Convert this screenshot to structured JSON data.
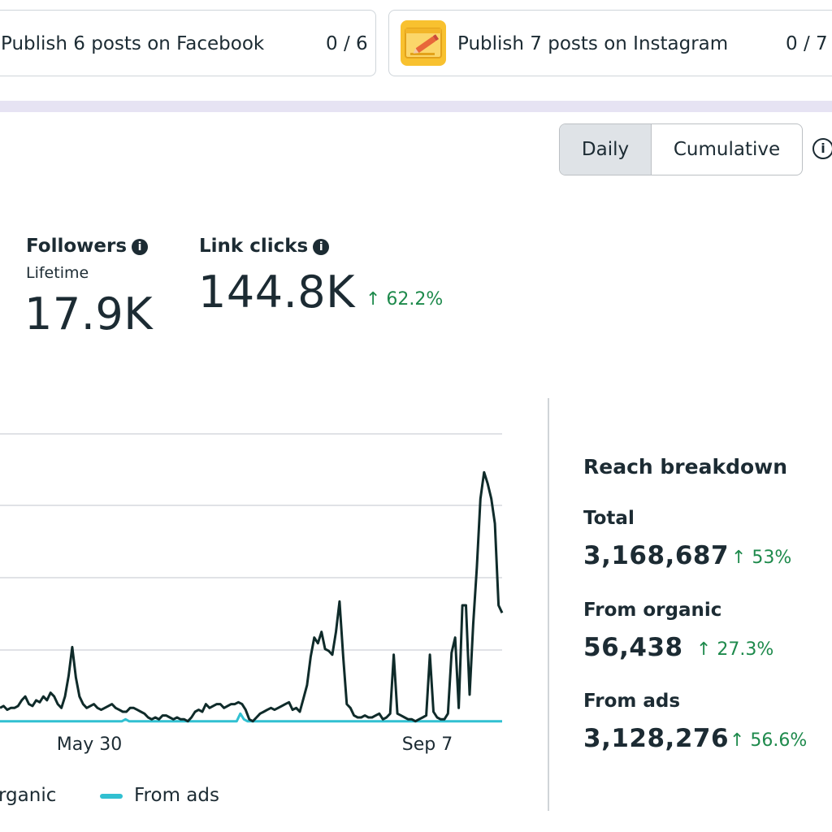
{
  "goals": [
    {
      "label": "Publish 6 posts on Facebook",
      "count": "0 / 6"
    },
    {
      "label": "Publish 7 posts on Instagram",
      "count": "0 / 7"
    }
  ],
  "toggle": {
    "daily": "Daily",
    "cumulative": "Cumulative",
    "selected": "Daily"
  },
  "metrics": {
    "followers": {
      "title": "Followers",
      "subtitle": "Lifetime",
      "value": "17.9K"
    },
    "link_clicks": {
      "title": "Link clicks",
      "value": "144.8K",
      "delta": "↑ 62.2%"
    }
  },
  "chart_data": {
    "type": "line",
    "x_tick_labels": [
      "May 30",
      "Sep 7"
    ],
    "series": [
      {
        "name": "organic",
        "color": "#0f2b2a",
        "values": [
          8,
          9,
          7,
          8,
          8,
          9,
          12,
          14,
          10,
          9,
          12,
          11,
          14,
          12,
          16,
          14,
          10,
          8,
          14,
          25,
          40,
          24,
          14,
          10,
          8,
          9,
          10,
          8,
          7,
          8,
          9,
          10,
          8,
          7,
          6,
          6,
          8,
          8,
          7,
          6,
          5,
          3,
          2,
          3,
          2,
          4,
          4,
          3,
          2,
          3,
          2,
          2,
          1,
          3,
          6,
          7,
          6,
          10,
          8,
          9,
          10,
          10,
          8,
          9,
          10,
          10,
          11,
          10,
          7,
          2,
          1,
          3,
          5,
          6,
          7,
          8,
          7,
          8,
          9,
          10,
          11,
          7,
          8,
          6,
          13,
          20,
          35,
          45,
          42,
          48,
          39,
          38,
          36,
          48,
          64,
          35,
          10,
          8,
          4,
          3,
          3,
          4,
          3,
          3,
          4,
          5,
          2,
          3,
          5,
          36,
          5,
          4,
          3,
          2,
          2,
          1,
          2,
          3,
          4,
          36,
          6,
          3,
          2,
          2,
          5,
          37,
          45,
          8,
          62,
          62,
          15,
          52,
          82,
          118,
          132,
          126,
          118,
          105,
          62,
          58
        ]
      },
      {
        "name": "From ads",
        "color": "#31c0d1",
        "values": [
          1,
          1,
          1,
          1,
          1,
          1,
          1,
          1,
          1,
          1,
          1,
          1,
          1,
          1,
          1,
          1,
          1,
          1,
          1,
          1,
          1,
          1,
          1,
          1,
          1,
          1,
          1,
          1,
          1,
          1,
          1,
          1,
          1,
          1,
          1,
          2,
          1,
          1,
          1,
          1,
          1,
          1,
          1,
          1,
          1,
          1,
          1,
          1,
          1,
          1,
          1,
          1,
          1,
          1,
          1,
          1,
          1,
          1,
          1,
          1,
          1,
          1,
          1,
          1,
          1,
          1,
          1,
          5,
          2,
          1,
          1,
          1,
          1,
          1,
          1,
          1,
          1,
          1,
          1,
          1,
          1,
          1,
          1,
          1,
          1,
          1,
          1,
          1,
          1,
          1,
          1,
          1,
          1,
          1,
          1,
          1,
          1,
          1,
          1,
          1,
          1,
          1,
          1,
          1,
          1,
          1,
          1,
          1,
          1,
          1,
          1,
          1,
          1,
          1,
          1,
          1,
          1,
          1,
          1,
          1,
          1,
          1,
          1,
          1,
          1,
          1,
          1,
          1,
          1,
          1,
          1,
          1,
          1,
          1,
          1,
          1,
          1,
          1,
          1,
          1,
          1
        ]
      }
    ],
    "legend": [
      "organic",
      "From ads"
    ],
    "grid": true
  },
  "legend": {
    "organic": "rganic",
    "ads": "From ads"
  },
  "reach": {
    "title": "Reach breakdown",
    "rows": [
      {
        "label": "Total",
        "value": "3,168,687",
        "delta": "↑ 53%"
      },
      {
        "label": "From organic",
        "value": "56,438",
        "delta": "↑ 27.3%"
      },
      {
        "label": "From ads",
        "value": "3,128,276",
        "delta": "↑ 56.6%"
      }
    ]
  }
}
